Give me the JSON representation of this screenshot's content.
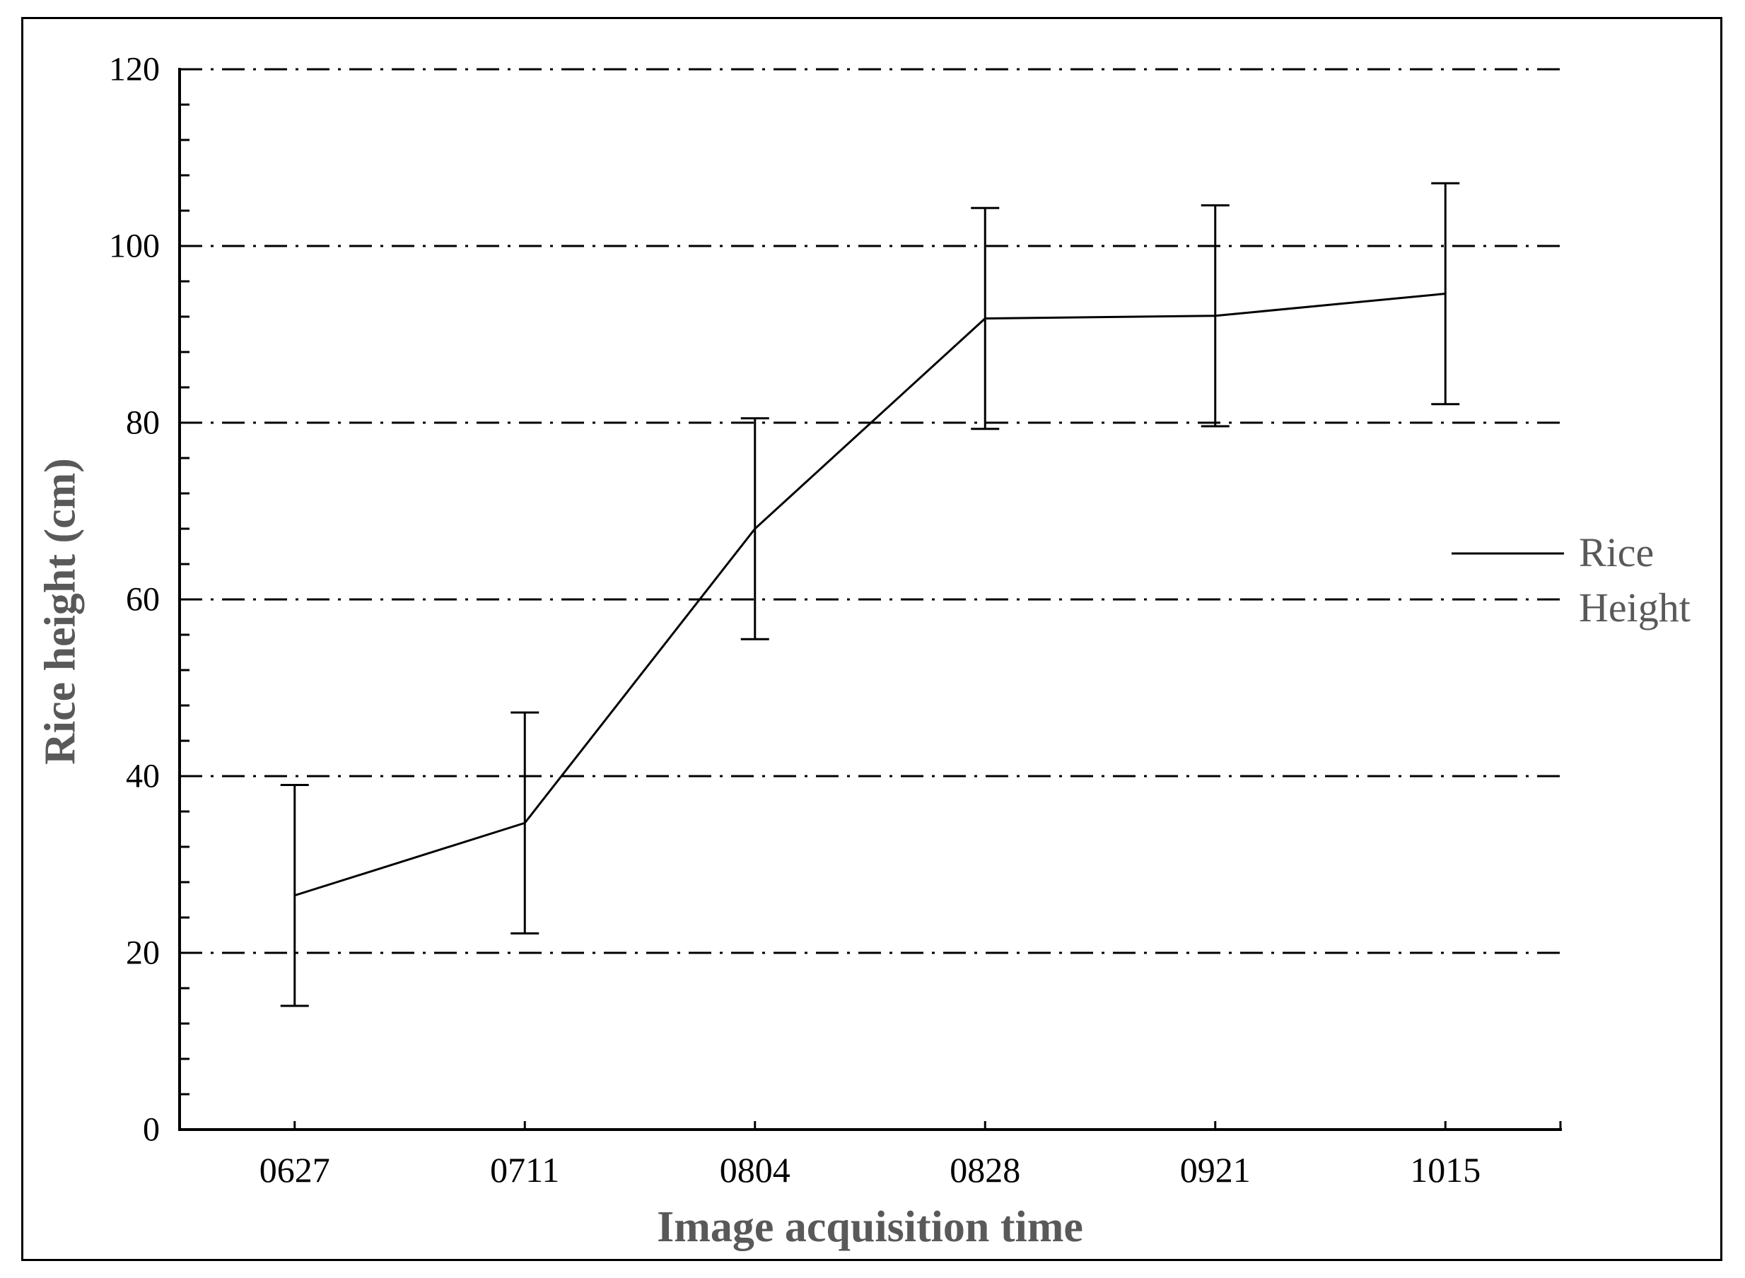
{
  "chart_data": {
    "type": "line",
    "xlabel": "Image acquisition time",
    "ylabel": "Rice height (cm)",
    "categories": [
      "0627",
      "0711",
      "0804",
      "0828",
      "0921",
      "1015"
    ],
    "series": [
      {
        "name": "Rice Height",
        "legend_lines": [
          "Rice",
          "Height"
        ],
        "values": [
          26.5,
          34.7,
          68,
          91.8,
          92.1,
          94.6
        ],
        "error_plus": 12.5,
        "error_minus": 12.5,
        "marker": "none"
      }
    ],
    "ylim": [
      0,
      120
    ],
    "yticks": [
      0,
      20,
      40,
      60,
      80,
      100,
      120
    ],
    "y_minor_tick_step": 4,
    "grid": {
      "axis": "y",
      "style": "dash-dot",
      "values": [
        20,
        40,
        60,
        80,
        100,
        120
      ]
    },
    "legend_position": "middle-right"
  },
  "colors": {
    "background": "#ffffff",
    "figure_border": "#000000",
    "axis": "#000000",
    "tick_label": "#000000",
    "series_line": "#000000",
    "gridline": "#000000",
    "axis_title": "#595959",
    "legend_text": "#595959"
  }
}
